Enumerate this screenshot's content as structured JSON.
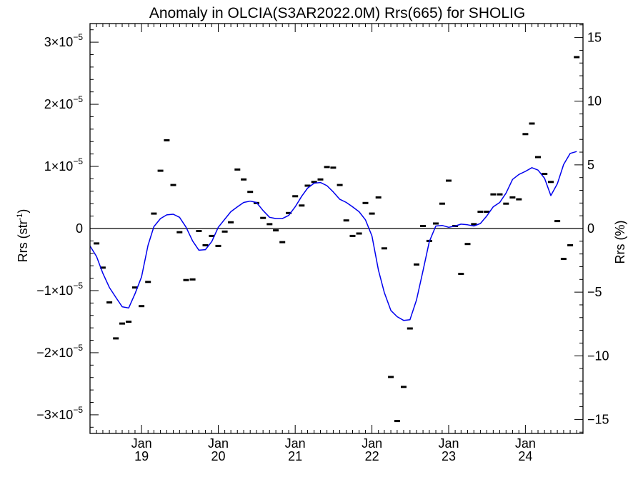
{
  "chart_data": {
    "type": "line+scatter",
    "title": "Anomaly in OLCIA(S3AR2022.0M) Rrs(665) for SHOLIG",
    "ylabel_left": {
      "base": "Rrs (str",
      "sup": "-1",
      "end": ")"
    },
    "ylabel_right": "Rrs (%)",
    "x_range": [
      "2018-05-01",
      "2024-10-01"
    ],
    "x_ticks": [
      {
        "date": "2019-01-01",
        "month": "Jan",
        "year": "19"
      },
      {
        "date": "2020-01-01",
        "month": "Jan",
        "year": "20"
      },
      {
        "date": "2021-01-01",
        "month": "Jan",
        "year": "21"
      },
      {
        "date": "2022-01-01",
        "month": "Jan",
        "year": "22"
      },
      {
        "date": "2023-01-01",
        "month": "Jan",
        "year": "23"
      },
      {
        "date": "2024-01-01",
        "month": "Jan",
        "year": "24"
      }
    ],
    "y_left_range": [
      -3.3e-05,
      3.3e-05
    ],
    "y_left_ticks": [
      {
        "value": 3e-05,
        "mant": "3",
        "exp": "−5"
      },
      {
        "value": 2e-05,
        "mant": "2",
        "exp": "−5"
      },
      {
        "value": 1e-05,
        "mant": "1",
        "exp": "−5"
      },
      {
        "value": 0,
        "mant": "0",
        "exp": ""
      },
      {
        "value": -1e-05,
        "mant": "−1",
        "exp": "−5"
      },
      {
        "value": -2e-05,
        "mant": "−2",
        "exp": "−5"
      },
      {
        "value": -3e-05,
        "mant": "−3",
        "exp": "−5"
      }
    ],
    "y_right_range": [
      -16.1,
      16.1
    ],
    "y_right_ticks": [
      {
        "value": 15,
        "label": "15"
      },
      {
        "value": 10,
        "label": "10"
      },
      {
        "value": 5,
        "label": "5"
      },
      {
        "value": 0,
        "label": "0"
      },
      {
        "value": -5,
        "label": "−5"
      },
      {
        "value": -10,
        "label": "−10"
      },
      {
        "value": -15,
        "label": "−15"
      }
    ],
    "zero_line": true,
    "series": [
      {
        "type": "scatter",
        "marker": "dash",
        "color": "#000000",
        "points": [
          [
            "2018-06-01",
            -2.4e-06
          ],
          [
            "2018-07-01",
            -6.3e-06
          ],
          [
            "2018-08-01",
            -1.19e-05
          ],
          [
            "2018-09-01",
            -1.77e-05
          ],
          [
            "2018-10-01",
            -1.53e-05
          ],
          [
            "2018-11-01",
            -1.5e-05
          ],
          [
            "2018-12-01",
            -9.5e-06
          ],
          [
            "2019-01-01",
            -1.25e-05
          ],
          [
            "2019-02-01",
            -8.6e-06
          ],
          [
            "2019-03-01",
            2.4e-06
          ],
          [
            "2019-04-01",
            9.3e-06
          ],
          [
            "2019-05-01",
            1.42e-05
          ],
          [
            "2019-06-01",
            7e-06
          ],
          [
            "2019-07-01",
            -6e-07
          ],
          [
            "2019-08-01",
            -8.3e-06
          ],
          [
            "2019-09-01",
            -8.2e-06
          ],
          [
            "2019-10-01",
            -4e-07
          ],
          [
            "2019-11-01",
            -2.7e-06
          ],
          [
            "2019-12-01",
            -1.2e-06
          ],
          [
            "2020-01-01",
            -2.8e-06
          ],
          [
            "2020-02-01",
            -5e-07
          ],
          [
            "2020-03-01",
            1e-06
          ],
          [
            "2020-04-01",
            9.5e-06
          ],
          [
            "2020-05-01",
            7.9e-06
          ],
          [
            "2020-06-01",
            5.9e-06
          ],
          [
            "2020-07-01",
            4.1e-06
          ],
          [
            "2020-08-01",
            1.7e-06
          ],
          [
            "2020-09-01",
            7e-07
          ],
          [
            "2020-10-01",
            -3e-07
          ],
          [
            "2020-11-01",
            -2.2e-06
          ],
          [
            "2020-12-01",
            2.5e-06
          ],
          [
            "2021-01-01",
            5.2e-06
          ],
          [
            "2021-02-01",
            3.7e-06
          ],
          [
            "2021-03-01",
            6.9e-06
          ],
          [
            "2021-04-01",
            7.5e-06
          ],
          [
            "2021-05-01",
            7.9e-06
          ],
          [
            "2021-06-01",
            9.9e-06
          ],
          [
            "2021-07-01",
            9.8e-06
          ],
          [
            "2021-08-01",
            7e-06
          ],
          [
            "2021-09-01",
            1.3e-06
          ],
          [
            "2021-10-01",
            -1.2e-06
          ],
          [
            "2021-11-01",
            -8e-07
          ],
          [
            "2021-12-01",
            4.1e-06
          ],
          [
            "2022-01-01",
            2.4e-06
          ],
          [
            "2022-02-01",
            5e-06
          ],
          [
            "2022-03-01",
            -3.2e-06
          ],
          [
            "2022-04-01",
            -2.39e-05
          ],
          [
            "2022-05-01",
            -3.1e-05
          ],
          [
            "2022-06-01",
            -2.55e-05
          ],
          [
            "2022-07-01",
            -1.61e-05
          ],
          [
            "2022-08-01",
            -5.8e-06
          ],
          [
            "2022-09-01",
            4e-07
          ],
          [
            "2022-10-01",
            -2e-06
          ],
          [
            "2022-11-01",
            8e-07
          ],
          [
            "2022-12-01",
            4e-06
          ],
          [
            "2023-01-01",
            7.7e-06
          ],
          [
            "2023-02-01",
            4e-07
          ],
          [
            "2023-03-01",
            -7.3e-06
          ],
          [
            "2023-04-01",
            -2.5e-06
          ],
          [
            "2023-05-01",
            7e-07
          ],
          [
            "2023-06-01",
            2.7e-06
          ],
          [
            "2023-07-01",
            2.7e-06
          ],
          [
            "2023-08-01",
            5.5e-06
          ],
          [
            "2023-09-01",
            5.5e-06
          ],
          [
            "2023-10-01",
            4e-06
          ],
          [
            "2023-11-01",
            5e-06
          ],
          [
            "2023-12-01",
            4.7e-06
          ],
          [
            "2024-01-01",
            1.52e-05
          ],
          [
            "2024-02-01",
            1.69e-05
          ],
          [
            "2024-03-01",
            1.15e-05
          ],
          [
            "2024-04-01",
            8.8e-06
          ],
          [
            "2024-05-01",
            7.5e-06
          ],
          [
            "2024-06-01",
            1.2e-06
          ],
          [
            "2024-07-01",
            -4.9e-06
          ],
          [
            "2024-08-01",
            -2.7e-06
          ],
          [
            "2024-09-01",
            2.76e-05
          ]
        ]
      },
      {
        "type": "line",
        "color": "#0000ee",
        "points": [
          [
            "2018-05-01",
            -2.8e-06
          ],
          [
            "2018-06-01",
            -4.5e-06
          ],
          [
            "2018-07-01",
            -7.2e-06
          ],
          [
            "2018-08-01",
            -9.5e-06
          ],
          [
            "2018-09-01",
            -1.11e-05
          ],
          [
            "2018-10-01",
            -1.26e-05
          ],
          [
            "2018-11-01",
            -1.28e-05
          ],
          [
            "2018-12-01",
            -1.05e-05
          ],
          [
            "2019-01-01",
            -7.8e-06
          ],
          [
            "2019-02-01",
            -2.7e-06
          ],
          [
            "2019-03-01",
            3e-07
          ],
          [
            "2019-04-01",
            1.6e-06
          ],
          [
            "2019-05-01",
            2.2e-06
          ],
          [
            "2019-06-01",
            2.3e-06
          ],
          [
            "2019-07-01",
            1.8e-06
          ],
          [
            "2019-08-01",
            2e-07
          ],
          [
            "2019-09-01",
            -2e-06
          ],
          [
            "2019-10-01",
            -3.5e-06
          ],
          [
            "2019-11-01",
            -3.4e-06
          ],
          [
            "2019-12-01",
            -2.1e-06
          ],
          [
            "2020-01-01",
            2e-07
          ],
          [
            "2020-02-01",
            1.5e-06
          ],
          [
            "2020-03-01",
            2.7e-06
          ],
          [
            "2020-04-01",
            3.5e-06
          ],
          [
            "2020-05-01",
            4.2e-06
          ],
          [
            "2020-06-01",
            4.4e-06
          ],
          [
            "2020-07-01",
            4.2e-06
          ],
          [
            "2020-08-01",
            2.9e-06
          ],
          [
            "2020-09-01",
            1.8e-06
          ],
          [
            "2020-10-01",
            1.6e-06
          ],
          [
            "2020-11-01",
            1.6e-06
          ],
          [
            "2020-12-01",
            2.1e-06
          ],
          [
            "2021-01-01",
            3.5e-06
          ],
          [
            "2021-02-01",
            5.2e-06
          ],
          [
            "2021-03-01",
            6.5e-06
          ],
          [
            "2021-04-01",
            7.3e-06
          ],
          [
            "2021-05-01",
            7.4e-06
          ],
          [
            "2021-06-01",
            6.9e-06
          ],
          [
            "2021-07-01",
            5.9e-06
          ],
          [
            "2021-08-01",
            4.7e-06
          ],
          [
            "2021-09-01",
            4.2e-06
          ],
          [
            "2021-10-01",
            3.5e-06
          ],
          [
            "2021-11-01",
            2.7e-06
          ],
          [
            "2021-12-01",
            1.4e-06
          ],
          [
            "2022-01-01",
            -1.2e-06
          ],
          [
            "2022-02-01",
            -6.7e-06
          ],
          [
            "2022-03-01",
            -1.03e-05
          ],
          [
            "2022-04-01",
            -1.32e-05
          ],
          [
            "2022-05-01",
            -1.42e-05
          ],
          [
            "2022-06-01",
            -1.48e-05
          ],
          [
            "2022-07-01",
            -1.47e-05
          ],
          [
            "2022-08-01",
            -1.15e-05
          ],
          [
            "2022-09-01",
            -6.8e-06
          ],
          [
            "2022-10-01",
            -2.1e-06
          ],
          [
            "2022-11-01",
            4e-07
          ],
          [
            "2022-12-01",
            5e-07
          ],
          [
            "2023-01-01",
            2e-07
          ],
          [
            "2023-02-01",
            4e-07
          ],
          [
            "2023-03-01",
            7e-07
          ],
          [
            "2023-04-01",
            6e-07
          ],
          [
            "2023-05-01",
            4e-07
          ],
          [
            "2023-06-01",
            8e-07
          ],
          [
            "2023-07-01",
            2e-06
          ],
          [
            "2023-08-01",
            3.5e-06
          ],
          [
            "2023-09-01",
            4.2e-06
          ],
          [
            "2023-10-01",
            5.7e-06
          ],
          [
            "2023-11-01",
            7.9e-06
          ],
          [
            "2023-12-01",
            8.7e-06
          ],
          [
            "2024-01-01",
            9.2e-06
          ],
          [
            "2024-02-01",
            9.8e-06
          ],
          [
            "2024-03-01",
            9.4e-06
          ],
          [
            "2024-04-01",
            8.1e-06
          ],
          [
            "2024-05-01",
            5.3e-06
          ],
          [
            "2024-06-01",
            7.2e-06
          ],
          [
            "2024-07-01",
            1.03e-05
          ],
          [
            "2024-08-01",
            1.21e-05
          ],
          [
            "2024-09-01",
            1.24e-05
          ]
        ]
      }
    ]
  }
}
